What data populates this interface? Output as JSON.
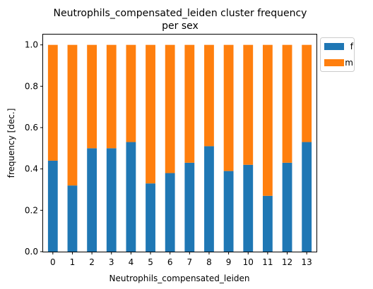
{
  "chart_data": {
    "type": "bar",
    "stacked": true,
    "title_line1": "Neutrophils_compensated_leiden cluster frequency",
    "title_line2": "per sex",
    "xlabel": "Neutrophils_compensated_leiden",
    "ylabel": "frequency [dec.]",
    "ylim": [
      0,
      1.05
    ],
    "yticks": [
      "0.0",
      "0.2",
      "0.4",
      "0.6",
      "0.8",
      "1.0"
    ],
    "categories": [
      "0",
      "1",
      "2",
      "3",
      "4",
      "5",
      "6",
      "7",
      "8",
      "9",
      "10",
      "11",
      "12",
      "13"
    ],
    "series": [
      {
        "name": "f",
        "color": "#1f77b4",
        "values": [
          0.44,
          0.32,
          0.5,
          0.5,
          0.53,
          0.33,
          0.38,
          0.43,
          0.51,
          0.39,
          0.42,
          0.27,
          0.43,
          0.53
        ]
      },
      {
        "name": "m",
        "color": "#ff7f0e",
        "values": [
          0.56,
          0.68,
          0.5,
          0.5,
          0.47,
          0.67,
          0.62,
          0.57,
          0.49,
          0.61,
          0.58,
          0.73,
          0.57,
          0.47
        ]
      }
    ],
    "grid": false,
    "legend_position": "outside-top-right"
  }
}
